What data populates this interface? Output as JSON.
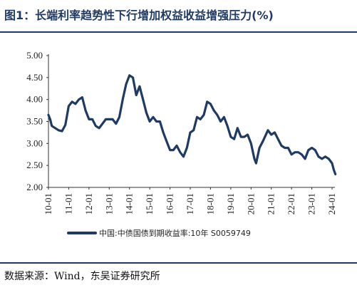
{
  "title": "图1：长端利率趋势性下行增加权益收益增强压力(%)",
  "source": "数据来源：Wind，东吴证券研究所",
  "colors": {
    "line": "#1f3a63",
    "rule": "#1f3a63"
  },
  "chart_data": {
    "type": "line",
    "title": "",
    "xlabel": "",
    "ylabel": "",
    "ylim": [
      2.0,
      5.0
    ],
    "yticks": [
      "2.00",
      "2.50",
      "3.00",
      "3.50",
      "4.00",
      "4.50",
      "5.00"
    ],
    "xticks": [
      "10-01",
      "11-01",
      "12-01",
      "13-01",
      "14-01",
      "15-01",
      "16-01",
      "17-01",
      "18-01",
      "19-01",
      "20-01",
      "21-01",
      "22-01",
      "23-01",
      "24-01"
    ],
    "grid": false,
    "legend": "bottom",
    "series": [
      {
        "name": "中国:中债国债到期收益率:10年 S0059749",
        "points": [
          [
            "2010-01",
            3.65
          ],
          [
            "2010-02",
            3.55
          ],
          [
            "2010-03",
            3.4
          ],
          [
            "2010-05",
            3.35
          ],
          [
            "2010-07",
            3.3
          ],
          [
            "2010-09",
            3.28
          ],
          [
            "2010-11",
            3.42
          ],
          [
            "2011-01",
            3.85
          ],
          [
            "2011-03",
            3.95
          ],
          [
            "2011-05",
            3.9
          ],
          [
            "2011-07",
            4.0
          ],
          [
            "2011-09",
            4.05
          ],
          [
            "2011-11",
            3.75
          ],
          [
            "2012-01",
            3.55
          ],
          [
            "2012-03",
            3.55
          ],
          [
            "2012-05",
            3.4
          ],
          [
            "2012-07",
            3.35
          ],
          [
            "2012-09",
            3.45
          ],
          [
            "2012-11",
            3.55
          ],
          [
            "2013-01",
            3.55
          ],
          [
            "2013-03",
            3.55
          ],
          [
            "2013-05",
            3.45
          ],
          [
            "2013-07",
            3.6
          ],
          [
            "2013-09",
            4.0
          ],
          [
            "2013-11",
            4.35
          ],
          [
            "2014-01",
            4.55
          ],
          [
            "2014-03",
            4.5
          ],
          [
            "2014-05",
            4.1
          ],
          [
            "2014-07",
            4.3
          ],
          [
            "2014-09",
            4.0
          ],
          [
            "2014-11",
            3.7
          ],
          [
            "2015-01",
            3.5
          ],
          [
            "2015-03",
            3.6
          ],
          [
            "2015-05",
            3.5
          ],
          [
            "2015-07",
            3.5
          ],
          [
            "2015-09",
            3.25
          ],
          [
            "2015-11",
            3.05
          ],
          [
            "2016-01",
            2.85
          ],
          [
            "2016-03",
            2.85
          ],
          [
            "2016-05",
            2.95
          ],
          [
            "2016-07",
            2.8
          ],
          [
            "2016-09",
            2.7
          ],
          [
            "2016-11",
            2.9
          ],
          [
            "2017-01",
            3.25
          ],
          [
            "2017-03",
            3.3
          ],
          [
            "2017-05",
            3.6
          ],
          [
            "2017-07",
            3.55
          ],
          [
            "2017-09",
            3.65
          ],
          [
            "2017-11",
            3.95
          ],
          [
            "2018-01",
            3.9
          ],
          [
            "2018-03",
            3.75
          ],
          [
            "2018-05",
            3.65
          ],
          [
            "2018-07",
            3.5
          ],
          [
            "2018-09",
            3.6
          ],
          [
            "2018-11",
            3.4
          ],
          [
            "2019-01",
            3.15
          ],
          [
            "2019-03",
            3.1
          ],
          [
            "2019-05",
            3.35
          ],
          [
            "2019-07",
            3.15
          ],
          [
            "2019-09",
            3.15
          ],
          [
            "2019-11",
            3.2
          ],
          [
            "2020-01",
            3.0
          ],
          [
            "2020-03",
            2.65
          ],
          [
            "2020-04",
            2.55
          ],
          [
            "2020-06",
            2.9
          ],
          [
            "2020-08",
            3.05
          ],
          [
            "2020-11",
            3.3
          ],
          [
            "2021-01",
            3.2
          ],
          [
            "2021-03",
            3.25
          ],
          [
            "2021-05",
            3.1
          ],
          [
            "2021-07",
            2.95
          ],
          [
            "2021-09",
            2.9
          ],
          [
            "2021-11",
            2.9
          ],
          [
            "2022-01",
            2.75
          ],
          [
            "2022-03",
            2.8
          ],
          [
            "2022-05",
            2.8
          ],
          [
            "2022-07",
            2.75
          ],
          [
            "2022-09",
            2.65
          ],
          [
            "2022-11",
            2.85
          ],
          [
            "2023-01",
            2.9
          ],
          [
            "2023-03",
            2.85
          ],
          [
            "2023-05",
            2.7
          ],
          [
            "2023-07",
            2.65
          ],
          [
            "2023-09",
            2.7
          ],
          [
            "2023-11",
            2.65
          ],
          [
            "2024-01",
            2.55
          ],
          [
            "2024-02",
            2.4
          ],
          [
            "2024-03",
            2.3
          ]
        ]
      }
    ]
  }
}
